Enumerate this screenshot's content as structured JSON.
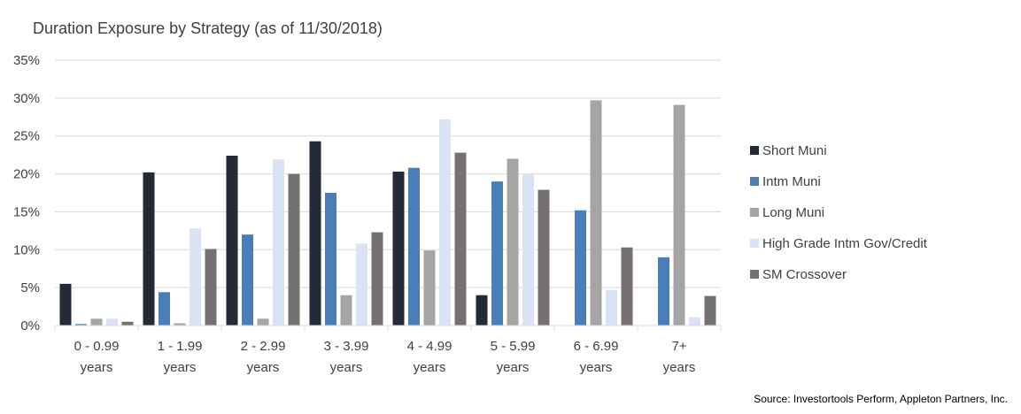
{
  "chart_data": {
    "type": "bar",
    "title": "Duration Exposure by Strategy (as of 11/30/2018)",
    "xlabel": "",
    "ylabel": "",
    "ylim": [
      0,
      35
    ],
    "y_ticks": [
      "0%",
      "5%",
      "10%",
      "15%",
      "20%",
      "25%",
      "30%",
      "35%"
    ],
    "y_tick_values": [
      0,
      5,
      10,
      15,
      20,
      25,
      30,
      35
    ],
    "grid": true,
    "legend_position": "right",
    "categories": [
      [
        "0 - 0.99",
        "years"
      ],
      [
        "1 - 1.99",
        "years"
      ],
      [
        "2 - 2.99",
        "years"
      ],
      [
        "3 - 3.99",
        "years"
      ],
      [
        "4 - 4.99",
        "years"
      ],
      [
        "5 - 5.99",
        "years"
      ],
      [
        "6 - 6.99",
        "years"
      ],
      [
        "7+",
        "years"
      ]
    ],
    "series": [
      {
        "name": "Short Muni",
        "color": "#232a35",
        "values": [
          5.5,
          20.2,
          22.4,
          24.3,
          20.3,
          4.0,
          0,
          0
        ]
      },
      {
        "name": "Intm Muni",
        "color": "#4a7ebb",
        "values": [
          0.2,
          4.4,
          12.0,
          17.5,
          20.8,
          19.0,
          15.2,
          9.0
        ]
      },
      {
        "name": "Long Muni",
        "color": "#a5a5a5",
        "values": [
          0.9,
          0.3,
          0.9,
          4.0,
          9.9,
          22.0,
          29.7,
          29.1
        ]
      },
      {
        "name": "High Grade Intm Gov/Credit",
        "color": "#dae3f3",
        "values": [
          0.9,
          12.8,
          21.9,
          10.8,
          27.2,
          20.0,
          4.7,
          1.1
        ]
      },
      {
        "name": "SM Crossover",
        "color": "#767171",
        "values": [
          0.5,
          10.1,
          20.0,
          12.3,
          22.8,
          17.9,
          10.3,
          3.9
        ]
      }
    ],
    "source": "Source: Investortools Perform, Appleton Partners, Inc."
  }
}
